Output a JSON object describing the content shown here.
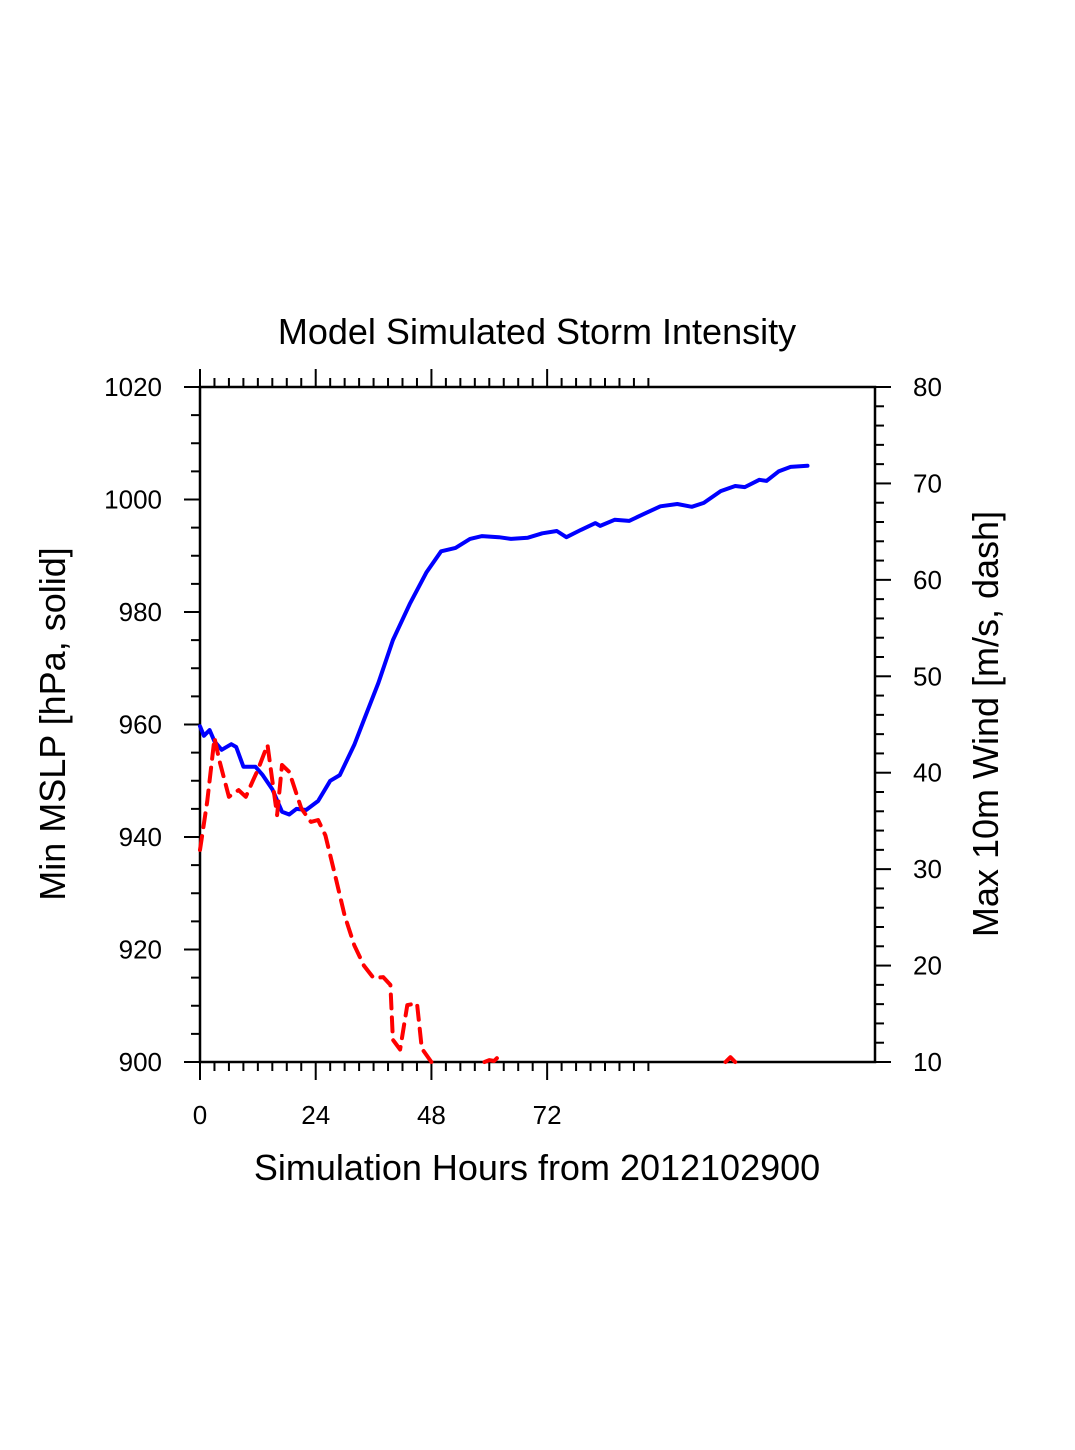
{
  "chart_data": {
    "type": "line",
    "title": "Model Simulated Storm Intensity",
    "xlabel": "Simulation Hours from 2012102900",
    "ylabel_left": "Min MSLP  [hPa, solid]",
    "ylabel_right": "Max 10m Wind  [m/s, dash]",
    "xlim": [
      0,
      140
    ],
    "ylim_left": [
      900,
      1020
    ],
    "ylim_right": [
      10,
      80
    ],
    "x_ticks": [
      0,
      24,
      48,
      72
    ],
    "x_tick_labels": [
      "0",
      "24",
      "48",
      "72"
    ],
    "x_minor_step": 3,
    "x_minor_max": 93,
    "y_left_ticks": [
      900,
      920,
      940,
      960,
      980,
      1000,
      1020
    ],
    "y_left_tick_labels": [
      "900",
      "920",
      "940",
      "960",
      "980",
      "1000",
      "1020"
    ],
    "y_left_minor_step": 5,
    "y_right_ticks": [
      10,
      20,
      30,
      40,
      50,
      60,
      70,
      80
    ],
    "y_right_tick_labels": [
      "10",
      "20",
      "30",
      "40",
      "50",
      "60",
      "70",
      "80"
    ],
    "y_right_minor_step": 2,
    "grid": false,
    "series": [
      {
        "name": "Min MSLP",
        "axis": "left",
        "style": "solid",
        "color": "#0000ff",
        "x": [
          0,
          0.8,
          2,
          3,
          4.5,
          6.5,
          7.5,
          9,
          11.5,
          13,
          15,
          17,
          18.5,
          20,
          22,
          24.5,
          27,
          29,
          32,
          34,
          37,
          40,
          43.5,
          47,
          50,
          53,
          56,
          58.5,
          62,
          64.5,
          68,
          71,
          74,
          76,
          79,
          82,
          83,
          86,
          89,
          92,
          95.5,
          99,
          102,
          104.5,
          108,
          111,
          113,
          116,
          117.5,
          120,
          122.5,
          126
        ],
        "y": [
          959.7,
          958,
          959,
          957,
          955.5,
          956.5,
          956,
          952.5,
          952.5,
          951,
          948.5,
          944.5,
          944,
          945,
          944.8,
          946.4,
          950,
          951,
          956.4,
          960.8,
          967.4,
          975,
          981.4,
          987.1,
          990.8,
          991.4,
          993,
          993.5,
          993.3,
          993,
          993.2,
          994,
          994.4,
          993.3,
          994.6,
          995.8,
          995.3,
          996.4,
          996.2,
          997.4,
          998.8,
          999.2,
          998.7,
          999.4,
          1001.5,
          1002.4,
          1002.2,
          1003.5,
          1003.3,
          1005,
          1005.8,
          1006
        ]
      },
      {
        "name": "Max 10m Wind",
        "axis": "right",
        "style": "dash",
        "color": "#ff0000",
        "segments": [
          {
            "x": [
              0,
              1.5,
              3,
              4,
              6,
              8,
              9.5,
              11,
              12,
              14,
              15,
              16,
              17,
              18.5,
              21,
              23,
              24.5,
              26,
              28,
              30,
              32,
              34,
              36,
              38,
              39.5,
              40,
              41.5,
              43,
              45,
              46,
              48
            ],
            "y": [
              32,
              37,
              43.6,
              41.3,
              37.5,
              38.2,
              37.5,
              39.2,
              40.3,
              42.9,
              39.2,
              35.6,
              40.8,
              40.1,
              36.3,
              34.9,
              35.1,
              33.5,
              29.4,
              25.2,
              22.1,
              20,
              18.7,
              18.8,
              18,
              12.3,
              11.3,
              15.9,
              16.1,
              11.4,
              10
            ]
          },
          {
            "x": [
              59,
              60,
              61,
              62,
              63
            ],
            "y": [
              10,
              10.2,
              10.1,
              10.6,
              10.5
            ]
          },
          {
            "x": [
              109,
              110,
              111
            ],
            "y": [
              10,
              10.5,
              10
            ]
          }
        ]
      }
    ]
  }
}
